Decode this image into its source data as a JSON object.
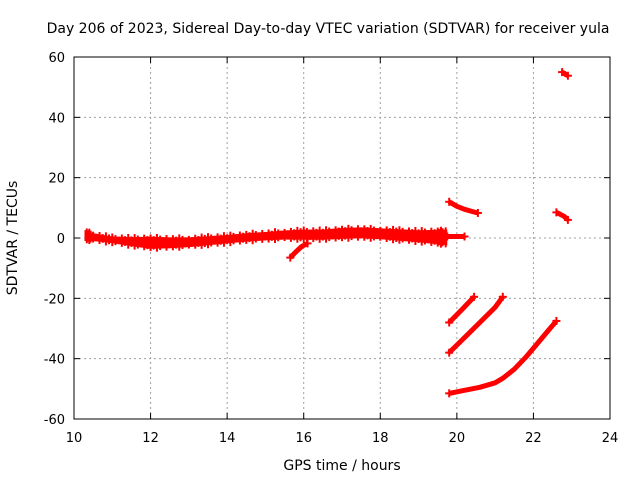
{
  "chart_data": {
    "type": "scatter",
    "title": "Day 206 of 2023, Sidereal Day-to-day VTEC variation (SDTVAR) for receiver yula",
    "xlabel": "GPS time / hours",
    "ylabel": "SDTVAR / TECUs",
    "xlim": [
      10,
      24
    ],
    "ylim": [
      -60,
      60
    ],
    "xticks": [
      10,
      12,
      14,
      16,
      18,
      20,
      22,
      24
    ],
    "yticks": [
      -60,
      -40,
      -20,
      0,
      20,
      40,
      60
    ],
    "grid": true,
    "marker_color": "#ff0000",
    "series": [
      {
        "name": "main-band",
        "band": true,
        "x": [
          10.3,
          10.5,
          11.0,
          11.5,
          12.0,
          12.5,
          13.0,
          13.5,
          14.0,
          14.5,
          15.0,
          15.5,
          16.0,
          16.5,
          17.0,
          17.5,
          18.0,
          18.5,
          19.0,
          19.5,
          19.75
        ],
        "mid": [
          0.8,
          0.3,
          -0.6,
          -1.2,
          -1.6,
          -1.6,
          -1.4,
          -0.9,
          -0.4,
          0.2,
          0.6,
          1.0,
          1.1,
          1.1,
          1.5,
          1.7,
          1.4,
          1.0,
          0.6,
          0.3,
          0.2
        ],
        "half": [
          1.8,
          1.3,
          1.1,
          1.5,
          2.0,
          1.8,
          1.6,
          1.5,
          1.4,
          1.4,
          1.4,
          1.5,
          1.7,
          1.7,
          1.8,
          1.8,
          1.8,
          1.9,
          2.0,
          2.4,
          2.6
        ]
      },
      {
        "name": "tail-0",
        "x": [
          19.75,
          20.2
        ],
        "y": [
          0.5,
          0.5
        ]
      },
      {
        "name": "dip-15-8",
        "x": [
          15.65,
          15.8,
          15.95,
          16.1
        ],
        "y": [
          -6.5,
          -4.5,
          -2.8,
          -1.8
        ]
      },
      {
        "name": "arc-20-a",
        "x": [
          19.8,
          20.0,
          20.2,
          20.4,
          20.55
        ],
        "y": [
          12.0,
          10.5,
          9.5,
          8.8,
          8.3
        ]
      },
      {
        "name": "arc-20-b",
        "x": [
          19.8,
          20.15,
          20.45
        ],
        "y": [
          -28.0,
          -23.5,
          -19.5
        ]
      },
      {
        "name": "arc-20-c",
        "x": [
          19.8,
          20.2,
          20.6,
          21.0,
          21.2
        ],
        "y": [
          -38.0,
          -33.0,
          -28.0,
          -23.0,
          -19.5
        ]
      },
      {
        "name": "arc-20-d",
        "x": [
          19.8,
          20.2,
          20.6,
          21.0,
          21.2,
          21.5,
          21.8,
          22.1,
          22.4,
          22.6
        ],
        "y": [
          -51.5,
          -50.5,
          -49.5,
          -48.0,
          -46.5,
          -43.5,
          -39.5,
          -35.0,
          -30.5,
          -27.5
        ]
      },
      {
        "name": "arc-22-a",
        "x": [
          22.6,
          22.8,
          22.9
        ],
        "y": [
          8.5,
          7.2,
          6.0
        ]
      },
      {
        "name": "arc-22-b",
        "x": [
          22.75,
          22.9
        ],
        "y": [
          55.0,
          53.8
        ]
      }
    ]
  }
}
